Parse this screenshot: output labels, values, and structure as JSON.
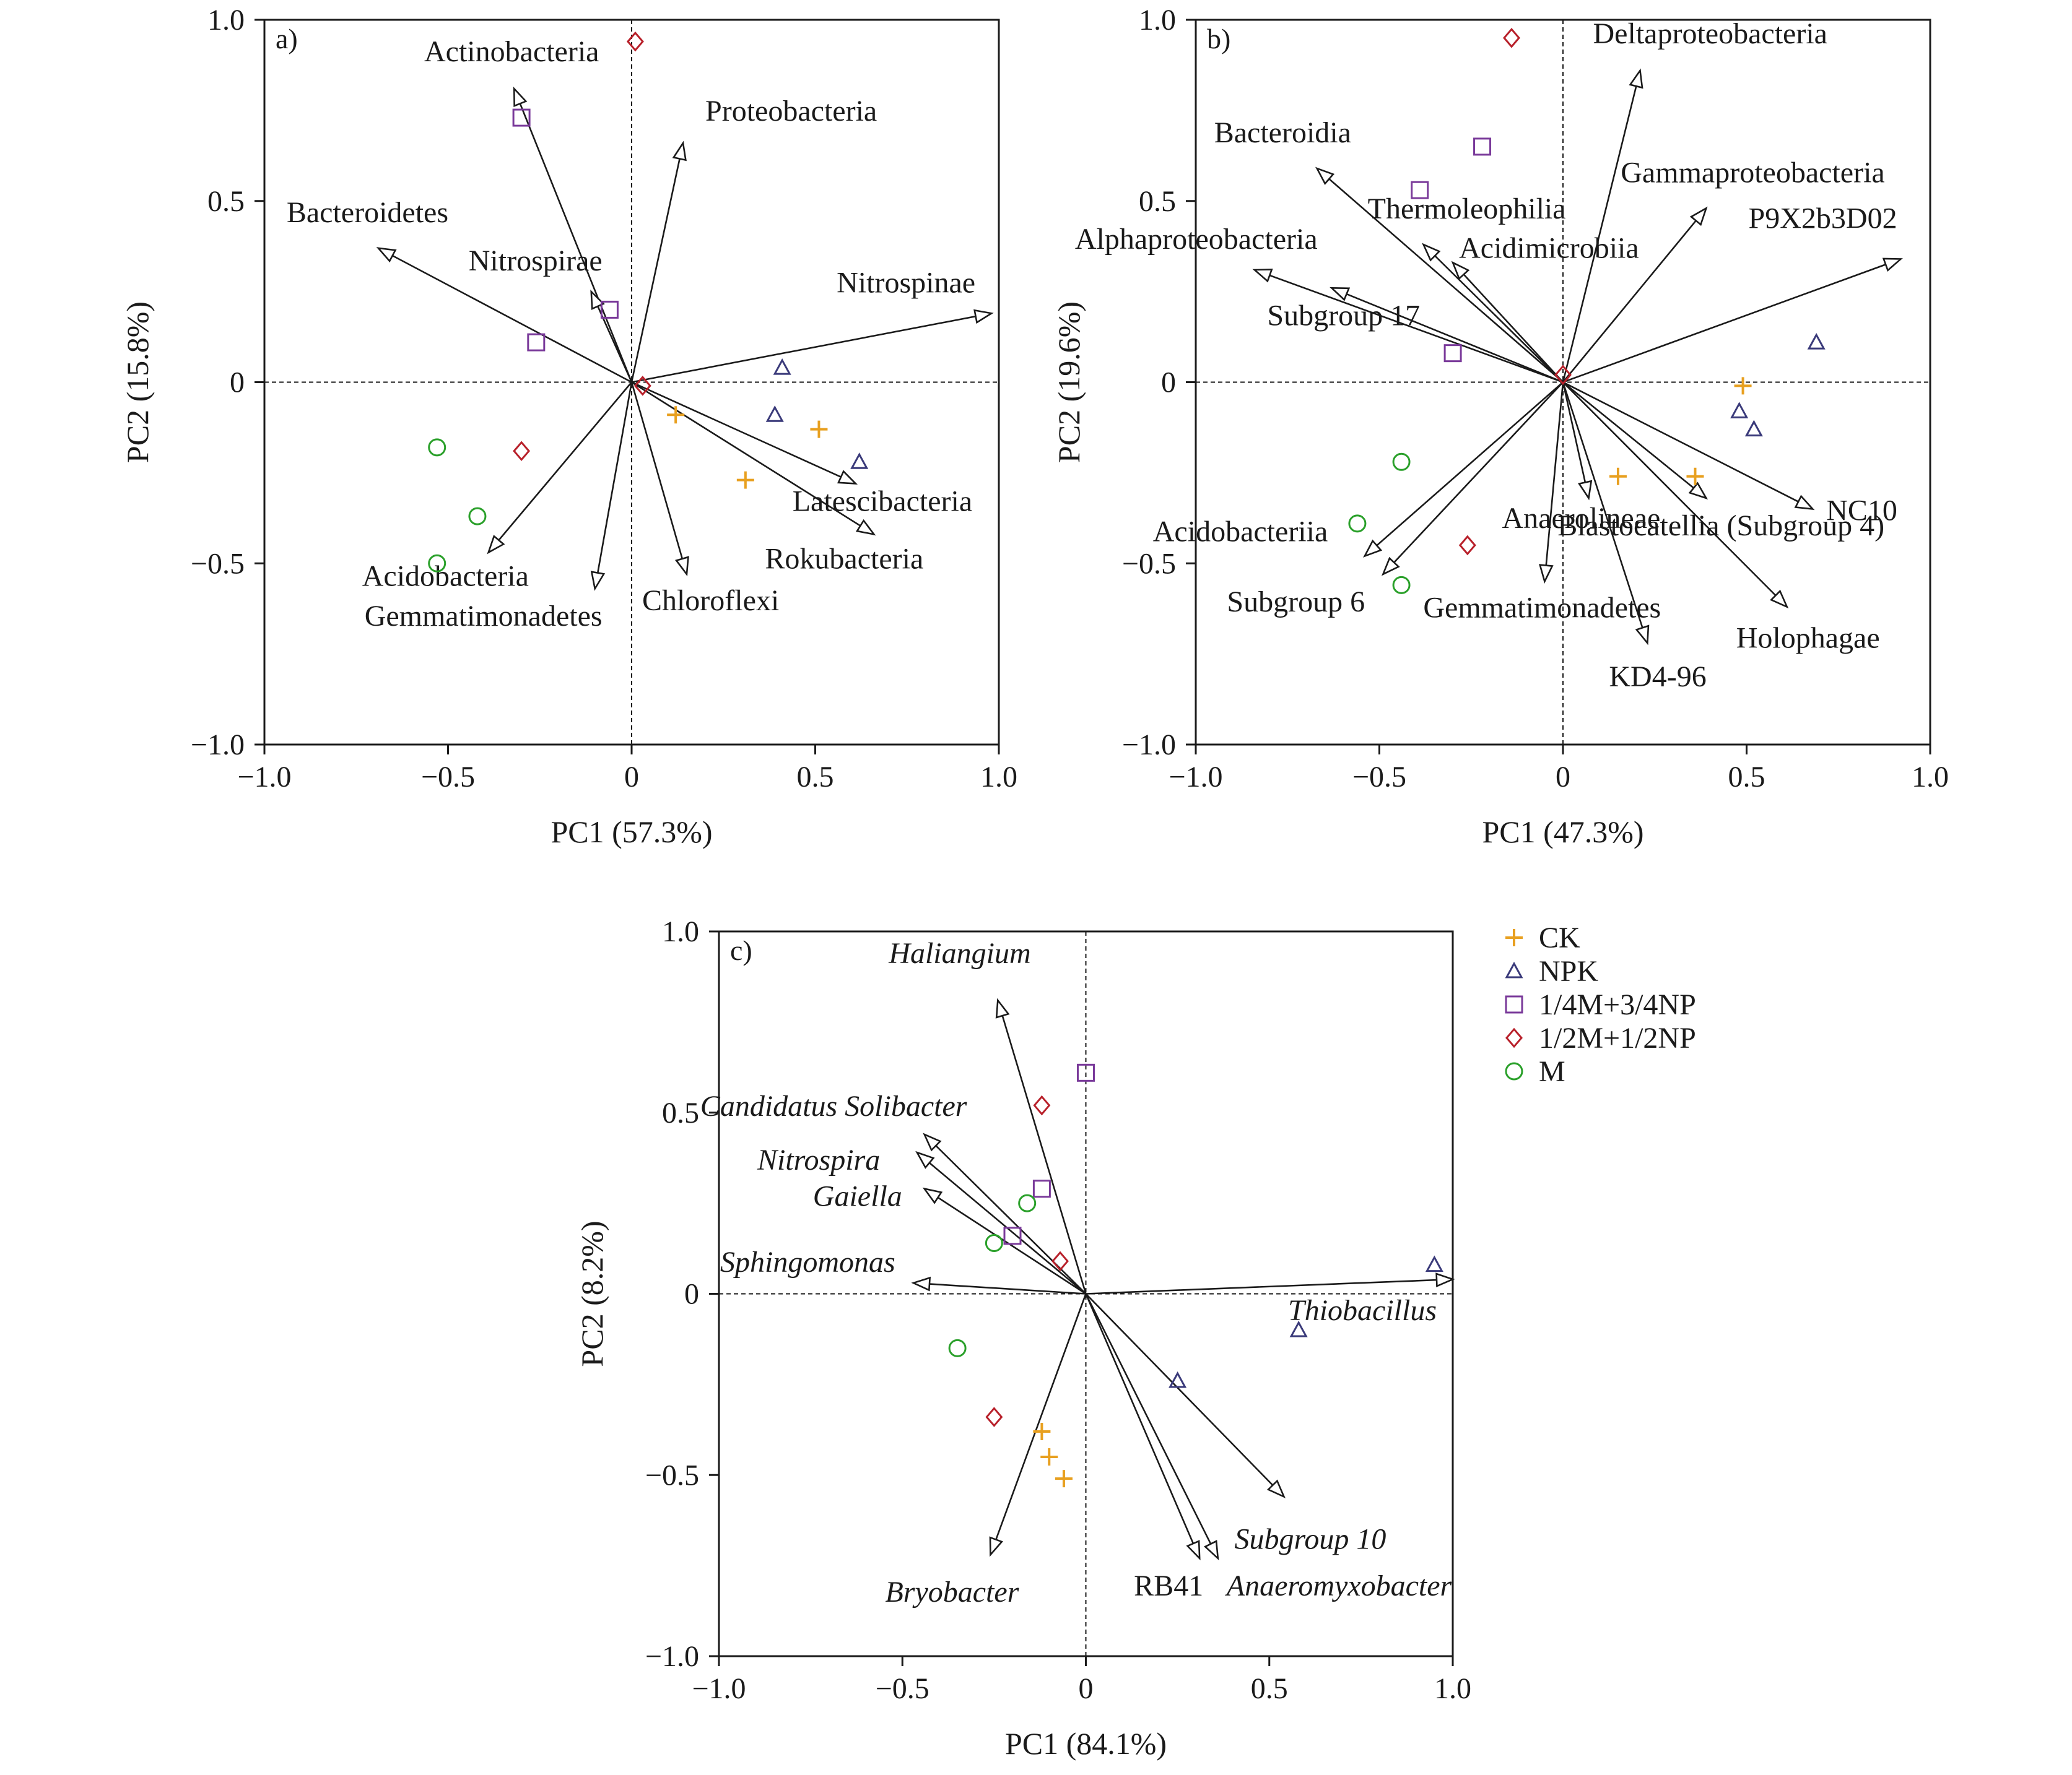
{
  "figure": {
    "legend": [
      {
        "key": "CK",
        "label": "CK",
        "marker": "plus",
        "color": "#e8a020"
      },
      {
        "key": "NPK",
        "label": "NPK",
        "marker": "triangle",
        "color": "#3a3a7a"
      },
      {
        "key": "Q",
        "label": "1/4M+3/4NP",
        "marker": "square",
        "color": "#7a3a9a"
      },
      {
        "key": "H",
        "label": "1/2M+1/2NP",
        "marker": "diamond",
        "color": "#b8202a"
      },
      {
        "key": "M",
        "label": "M",
        "marker": "circle",
        "color": "#2aa02a"
      }
    ]
  },
  "chart_data": [
    {
      "type": "scatter",
      "panel": "a)",
      "xlabel": "PC1 (57.3%)",
      "ylabel": "PC2 (15.8%)",
      "xlim": [
        -1.0,
        1.0
      ],
      "ylim": [
        -1.0,
        1.0
      ],
      "xticks": [
        "−1.0",
        "−0.5",
        "0",
        "0.5",
        "1.0"
      ],
      "yticks": [
        "1.0",
        "0.5",
        "0",
        "−0.5",
        "−1.0"
      ],
      "vectors": [
        {
          "name": "Actinobacteria",
          "x": -0.32,
          "y": 0.81,
          "italic": false
        },
        {
          "name": "Proteobacteria",
          "x": 0.14,
          "y": 0.66,
          "italic": false
        },
        {
          "name": "Bacteroidetes",
          "x": -0.69,
          "y": 0.37,
          "italic": false
        },
        {
          "name": "Nitrospirae",
          "x": -0.11,
          "y": 0.25,
          "italic": false
        },
        {
          "name": "Nitrospinae",
          "x": 0.98,
          "y": 0.19,
          "italic": false
        },
        {
          "name": "Latescibacteria",
          "x": 0.61,
          "y": -0.28,
          "italic": false
        },
        {
          "name": "Rokubacteria",
          "x": 0.66,
          "y": -0.42,
          "italic": false
        },
        {
          "name": "Chloroflexi",
          "x": 0.15,
          "y": -0.53,
          "italic": false
        },
        {
          "name": "Acidobacteria",
          "x": -0.39,
          "y": -0.47,
          "italic": false
        },
        {
          "name": "Gemmatimonadetes",
          "x": -0.1,
          "y": -0.57,
          "italic": false
        }
      ],
      "points": [
        {
          "group": "CK",
          "x": 0.12,
          "y": -0.09
        },
        {
          "group": "CK",
          "x": 0.51,
          "y": -0.13
        },
        {
          "group": "CK",
          "x": 0.31,
          "y": -0.27
        },
        {
          "group": "NPK",
          "x": 0.41,
          "y": 0.04
        },
        {
          "group": "NPK",
          "x": 0.39,
          "y": -0.09
        },
        {
          "group": "NPK",
          "x": 0.62,
          "y": -0.22
        },
        {
          "group": "Q",
          "x": -0.3,
          "y": 0.73
        },
        {
          "group": "Q",
          "x": -0.06,
          "y": 0.2
        },
        {
          "group": "Q",
          "x": -0.26,
          "y": 0.11
        },
        {
          "group": "H",
          "x": 0.01,
          "y": 0.94
        },
        {
          "group": "H",
          "x": 0.03,
          "y": -0.01
        },
        {
          "group": "H",
          "x": -0.3,
          "y": -0.19
        },
        {
          "group": "M",
          "x": -0.53,
          "y": -0.18
        },
        {
          "group": "M",
          "x": -0.42,
          "y": -0.37
        },
        {
          "group": "M",
          "x": -0.53,
          "y": -0.5
        }
      ]
    },
    {
      "type": "scatter",
      "panel": "b)",
      "xlabel": "PC1 (47.3%)",
      "ylabel": "PC2 (19.6%)",
      "xlim": [
        -1.0,
        1.0
      ],
      "ylim": [
        -1.0,
        1.0
      ],
      "xticks": [
        "−1.0",
        "−0.5",
        "0",
        "0.5",
        "1.0"
      ],
      "yticks": [
        "1.0",
        "0.5",
        "0",
        "−0.5",
        "−1.0"
      ],
      "vectors": [
        {
          "name": "Deltaproteobacteria",
          "x": 0.21,
          "y": 0.86,
          "italic": false
        },
        {
          "name": "Bacteroidia",
          "x": -0.67,
          "y": 0.59,
          "italic": false
        },
        {
          "name": "Gammaproteobacteria",
          "x": 0.39,
          "y": 0.48,
          "italic": false
        },
        {
          "name": "Thermoleophilia",
          "x": -0.38,
          "y": 0.38,
          "italic": false
        },
        {
          "name": "Acidimicrobiia",
          "x": -0.3,
          "y": 0.33,
          "italic": false
        },
        {
          "name": "P9X2b3D02",
          "x": 0.92,
          "y": 0.34,
          "italic": false
        },
        {
          "name": "Alphaproteobacteria",
          "x": -0.84,
          "y": 0.31,
          "italic": false
        },
        {
          "name": "Subgroup 17",
          "x": -0.63,
          "y": 0.26,
          "italic": false
        },
        {
          "name": "NC10",
          "x": 0.68,
          "y": -0.35,
          "italic": false
        },
        {
          "name": "Anaerolineae",
          "x": 0.07,
          "y": -0.32,
          "italic": false
        },
        {
          "name": "Blastocatellia (Subgroup 4)",
          "x": 0.39,
          "y": -0.32,
          "italic": false
        },
        {
          "name": "Acidobacteriia",
          "x": -0.54,
          "y": -0.48,
          "italic": false
        },
        {
          "name": "Subgroup 6",
          "x": -0.49,
          "y": -0.53,
          "italic": false
        },
        {
          "name": "Gemmatimonadetes",
          "x": -0.05,
          "y": -0.55,
          "italic": false
        },
        {
          "name": "Holophagae",
          "x": 0.61,
          "y": -0.62,
          "italic": false
        },
        {
          "name": "KD4-96",
          "x": 0.23,
          "y": -0.72,
          "italic": false
        }
      ],
      "points": [
        {
          "group": "CK",
          "x": 0.49,
          "y": -0.01
        },
        {
          "group": "CK",
          "x": 0.15,
          "y": -0.26
        },
        {
          "group": "CK",
          "x": 0.36,
          "y": -0.26
        },
        {
          "group": "NPK",
          "x": 0.69,
          "y": 0.11
        },
        {
          "group": "NPK",
          "x": 0.48,
          "y": -0.08
        },
        {
          "group": "NPK",
          "x": 0.52,
          "y": -0.13
        },
        {
          "group": "Q",
          "x": -0.22,
          "y": 0.65
        },
        {
          "group": "Q",
          "x": -0.39,
          "y": 0.53
        },
        {
          "group": "Q",
          "x": -0.3,
          "y": 0.08
        },
        {
          "group": "H",
          "x": -0.14,
          "y": 0.95
        },
        {
          "group": "H",
          "x": 0.0,
          "y": 0.02
        },
        {
          "group": "H",
          "x": -0.26,
          "y": -0.45
        },
        {
          "group": "M",
          "x": -0.44,
          "y": -0.22
        },
        {
          "group": "M",
          "x": -0.56,
          "y": -0.39
        },
        {
          "group": "M",
          "x": -0.44,
          "y": -0.56
        }
      ]
    },
    {
      "type": "scatter",
      "panel": "c)",
      "xlabel": "PC1 (84.1%)",
      "ylabel": "PC2 (8.2%)",
      "xlim": [
        -1.0,
        1.0
      ],
      "ylim": [
        -1.0,
        1.0
      ],
      "xticks": [
        "−1.0",
        "−0.5",
        "0",
        "0.5",
        "1.0"
      ],
      "yticks": [
        "1.0",
        "0.5",
        "0",
        "−0.5",
        "−1.0"
      ],
      "vectors": [
        {
          "name": "Haliangium",
          "x": -0.24,
          "y": 0.81,
          "italic": true
        },
        {
          "name": "Candidatus Solibacter",
          "x": -0.44,
          "y": 0.44,
          "italic": true
        },
        {
          "name": "Nitrospira",
          "x": -0.46,
          "y": 0.39,
          "italic": true
        },
        {
          "name": "Gaiella",
          "x": -0.44,
          "y": 0.29,
          "italic": true
        },
        {
          "name": "Sphingomonas",
          "x": -0.47,
          "y": 0.03,
          "italic": true
        },
        {
          "name": "Thiobacillus",
          "x": 1.0,
          "y": 0.04,
          "italic": true
        },
        {
          "name": "Subgroup 10",
          "x": 0.54,
          "y": -0.56,
          "italic": true
        },
        {
          "name": "Bryobacter",
          "x": -0.26,
          "y": -0.72,
          "italic": true
        },
        {
          "name": "RB41",
          "x": 0.31,
          "y": -0.73,
          "italic": false
        },
        {
          "name": "Anaeromyxobacter",
          "x": 0.36,
          "y": -0.73,
          "italic": true
        }
      ],
      "points": [
        {
          "group": "CK",
          "x": -0.12,
          "y": -0.38
        },
        {
          "group": "CK",
          "x": -0.1,
          "y": -0.45
        },
        {
          "group": "CK",
          "x": -0.06,
          "y": -0.51
        },
        {
          "group": "NPK",
          "x": 0.95,
          "y": 0.08
        },
        {
          "group": "NPK",
          "x": 0.58,
          "y": -0.1
        },
        {
          "group": "NPK",
          "x": 0.25,
          "y": -0.24
        },
        {
          "group": "Q",
          "x": 0.0,
          "y": 0.61
        },
        {
          "group": "Q",
          "x": -0.12,
          "y": 0.29
        },
        {
          "group": "Q",
          "x": -0.2,
          "y": 0.16
        },
        {
          "group": "H",
          "x": -0.12,
          "y": 0.52
        },
        {
          "group": "H",
          "x": -0.07,
          "y": 0.09
        },
        {
          "group": "H",
          "x": -0.25,
          "y": -0.34
        },
        {
          "group": "M",
          "x": -0.16,
          "y": 0.25
        },
        {
          "group": "M",
          "x": -0.25,
          "y": 0.14
        },
        {
          "group": "M",
          "x": -0.35,
          "y": -0.15
        }
      ]
    }
  ]
}
